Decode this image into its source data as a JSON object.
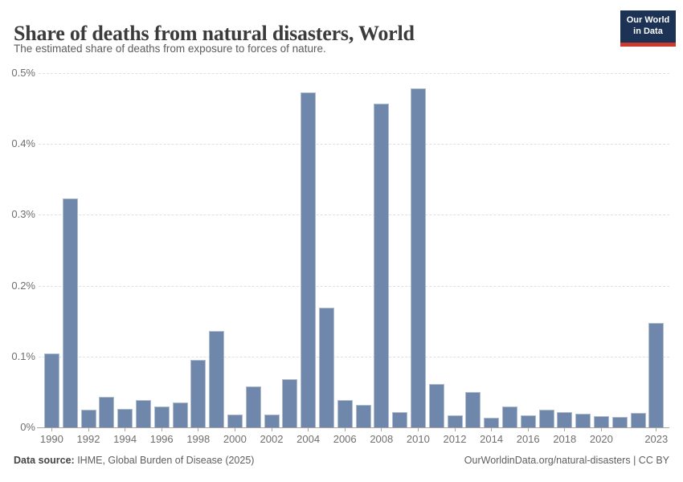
{
  "header": {
    "title": "Share of deaths from natural disasters, World",
    "subtitle": "The estimated share of deaths from exposure to forces of nature.",
    "logo": {
      "line1": "Our World",
      "line2": "in Data",
      "bg_color": "#1d3356",
      "accent_color": "#cc3a2e"
    }
  },
  "chart_data": {
    "type": "bar",
    "title": "Share of deaths from natural disasters, World",
    "subtitle": "The estimated share of deaths from exposure to forces of nature.",
    "categories": [
      "1990",
      "1991",
      "1992",
      "1993",
      "1994",
      "1995",
      "1996",
      "1997",
      "1998",
      "1999",
      "2000",
      "2001",
      "2002",
      "2003",
      "2004",
      "2005",
      "2006",
      "2007",
      "2008",
      "2009",
      "2010",
      "2011",
      "2012",
      "2013",
      "2014",
      "2015",
      "2016",
      "2017",
      "2018",
      "2019",
      "2020",
      "2021",
      "2022",
      "2023"
    ],
    "values": [
      0.104,
      0.323,
      0.025,
      0.043,
      0.026,
      0.038,
      0.03,
      0.035,
      0.095,
      0.136,
      0.018,
      0.058,
      0.018,
      0.068,
      0.473,
      0.169,
      0.038,
      0.032,
      0.457,
      0.021,
      0.479,
      0.061,
      0.017,
      0.05,
      0.014,
      0.029,
      0.017,
      0.025,
      0.022,
      0.019,
      0.016,
      0.015,
      0.02,
      0.147
    ],
    "unit": "%",
    "xlabel": "",
    "ylabel": "",
    "ylim": [
      0,
      0.5
    ],
    "ytick_labels": [
      "0%",
      "0.1%",
      "0.2%",
      "0.3%",
      "0.4%",
      "0.5%"
    ],
    "xtick_labels": [
      "1990",
      "1992",
      "1994",
      "1996",
      "1998",
      "2000",
      "2002",
      "2004",
      "2006",
      "2008",
      "2010",
      "2012",
      "2014",
      "2016",
      "2018",
      "2020",
      "2023"
    ],
    "bar_color": "#7087ac",
    "grid": "horizontal-dashed",
    "legend": "none"
  },
  "footer": {
    "source_label": "Data source:",
    "source_value": " IHME, Global Burden of Disease (2025)",
    "link": "OurWorldinData.org/natural-disasters",
    "separator": " | ",
    "license": "CC BY"
  }
}
